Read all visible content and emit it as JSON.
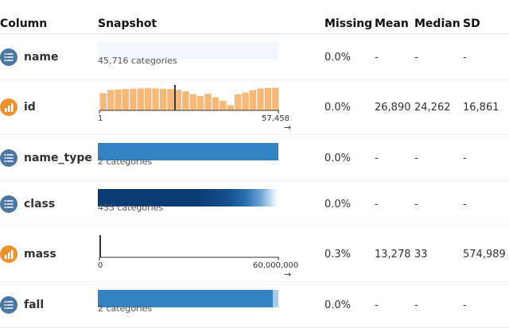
{
  "header": {
    "column": "Column",
    "snapshot": "Snapshot",
    "missing": "Missing",
    "mean": "Mean",
    "median": "Median",
    "sd": "SD"
  },
  "colors": {
    "categorical_icon": "#4d77a3",
    "numeric_icon": "#f0922b",
    "bar_blue": "#3483c3",
    "hist_orange": "#f7b97a",
    "pale_blue": "#f1f7fd",
    "dark_navy": "#0b3c75"
  },
  "rows": [
    {
      "name": "name",
      "type": "categorical",
      "icon": "list-icon",
      "categories_label": "45,716 categories",
      "missing": "0.0%",
      "mean": "-",
      "median": "-",
      "sd": "-"
    },
    {
      "name": "id",
      "type": "numeric",
      "icon": "bar-chart-icon",
      "axis_min": "1",
      "axis_max": "57,458",
      "missing": "0.0%",
      "mean": "26,890",
      "median": "24,262",
      "sd": "16,861",
      "histogram": [
        0.72,
        0.86,
        0.88,
        0.9,
        0.91,
        0.92,
        0.93,
        0.92,
        0.91,
        0.9,
        0.86,
        0.8,
        0.68,
        0.6,
        0.7,
        0.55,
        0.4,
        0.22,
        0.68,
        0.75,
        0.85,
        0.92,
        0.94,
        0.95
      ],
      "median_fraction": 0.42
    },
    {
      "name": "name_type",
      "type": "categorical",
      "icon": "list-icon",
      "categories_label": "2 categories",
      "missing": "0.0%",
      "mean": "-",
      "median": "-",
      "sd": "-"
    },
    {
      "name": "class",
      "type": "categorical",
      "icon": "list-icon",
      "categories_label": "455 categories",
      "missing": "0.0%",
      "mean": "-",
      "median": "-",
      "sd": "-"
    },
    {
      "name": "mass",
      "type": "numeric",
      "icon": "bar-chart-icon",
      "axis_min": "0",
      "axis_max": "60,000,000",
      "missing": "0.3%",
      "mean": "13,278",
      "median": "33",
      "sd": "574,989",
      "histogram": [
        1.0
      ],
      "median_fraction": 0.0
    },
    {
      "name": "fall",
      "type": "categorical",
      "icon": "list-icon",
      "categories_label": "2 categories",
      "missing": "0.0%",
      "mean": "-",
      "median": "-",
      "sd": "-"
    }
  ],
  "axis_arrow": "→"
}
